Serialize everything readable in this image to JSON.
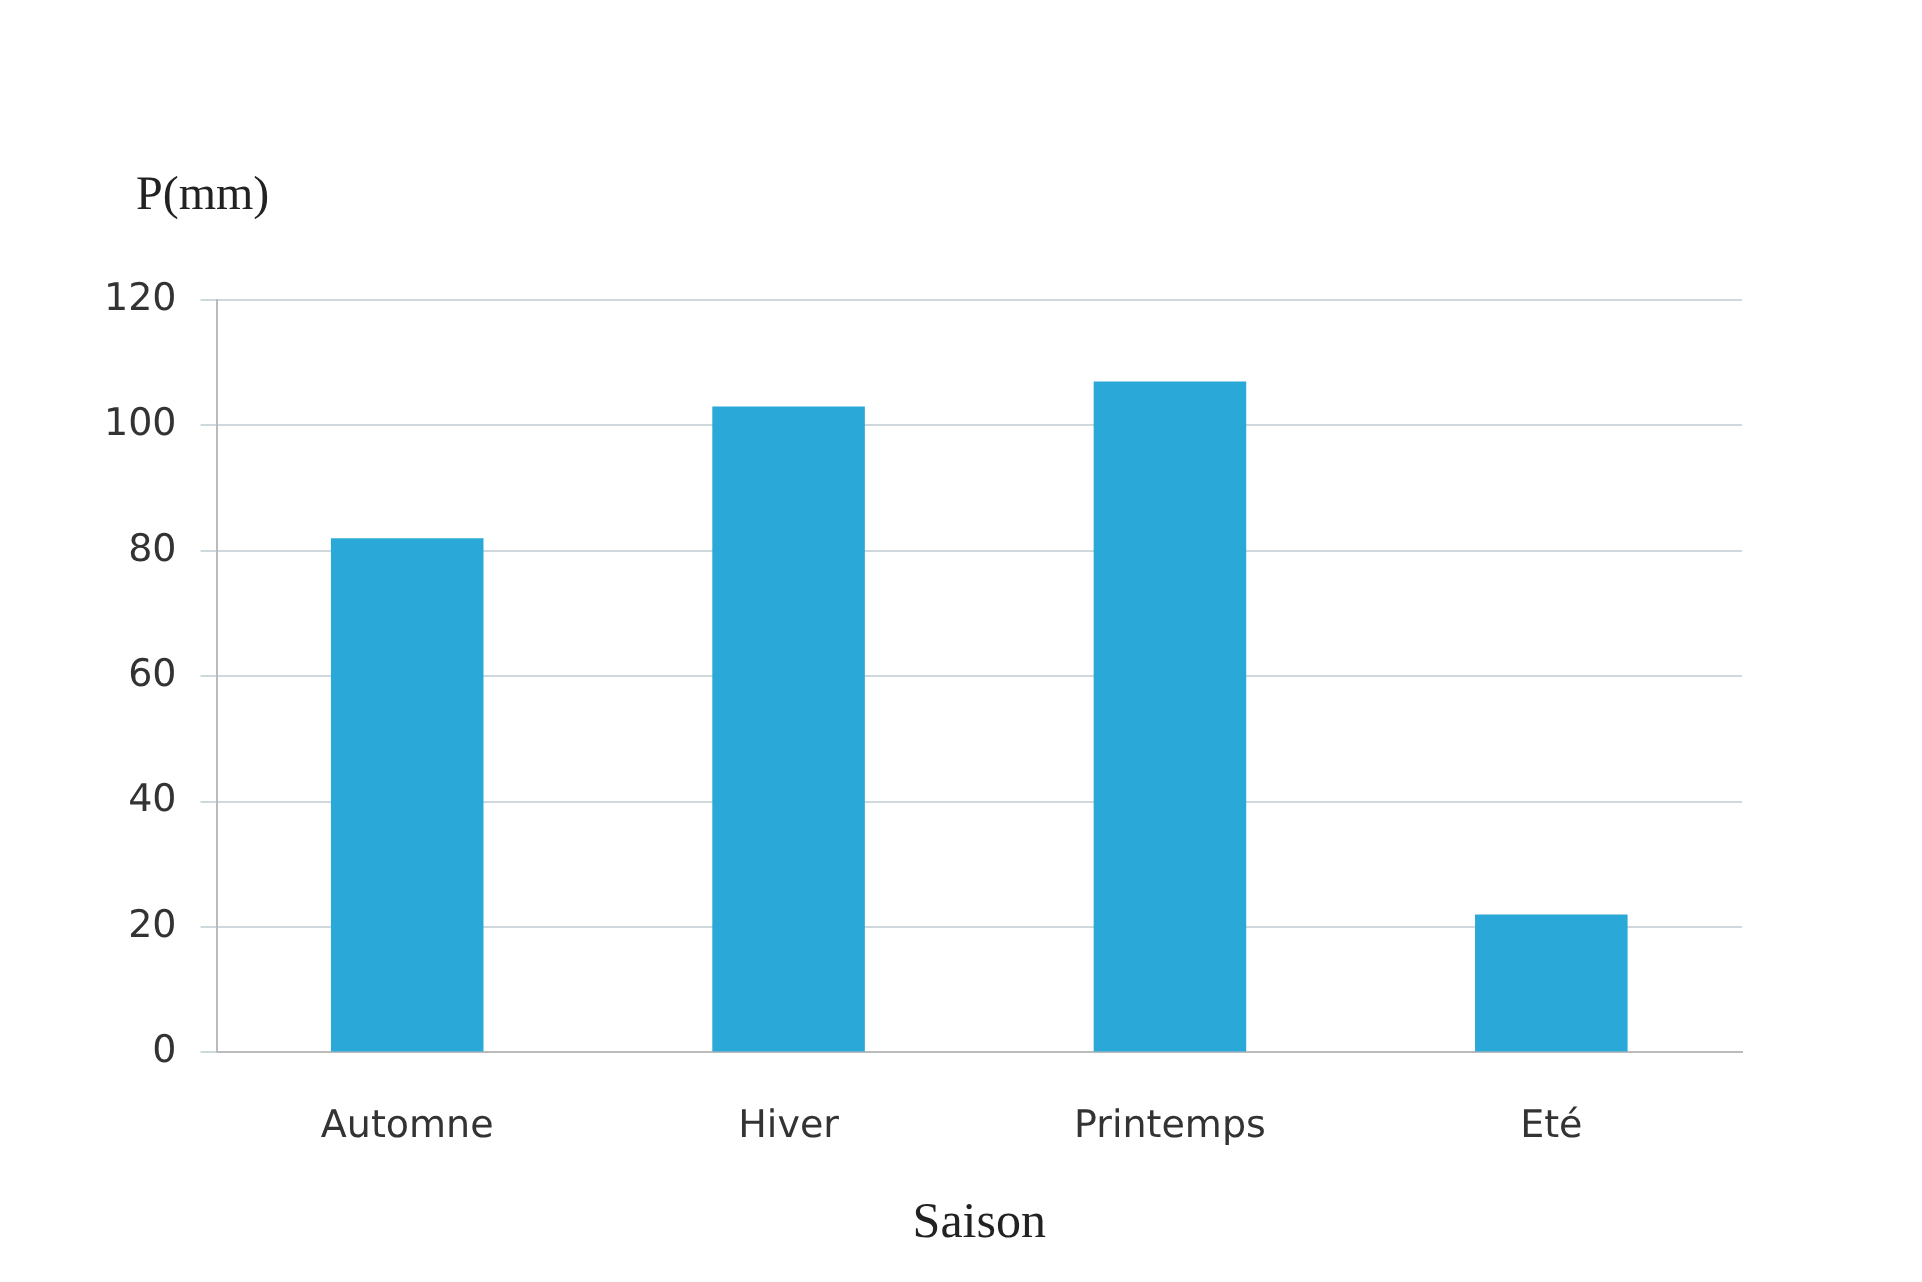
{
  "chart_data": {
    "type": "bar",
    "ylabel": "P(mm)",
    "xlabel": "Saison",
    "categories": [
      "Automne",
      "Hiver",
      "Printemps",
      "Eté"
    ],
    "values": [
      82,
      103,
      107,
      22
    ],
    "color": "#2aa8d8",
    "ylim": [
      0,
      120
    ],
    "yticks": [
      0,
      20,
      40,
      60,
      80,
      100,
      120
    ],
    "grid": "y"
  }
}
